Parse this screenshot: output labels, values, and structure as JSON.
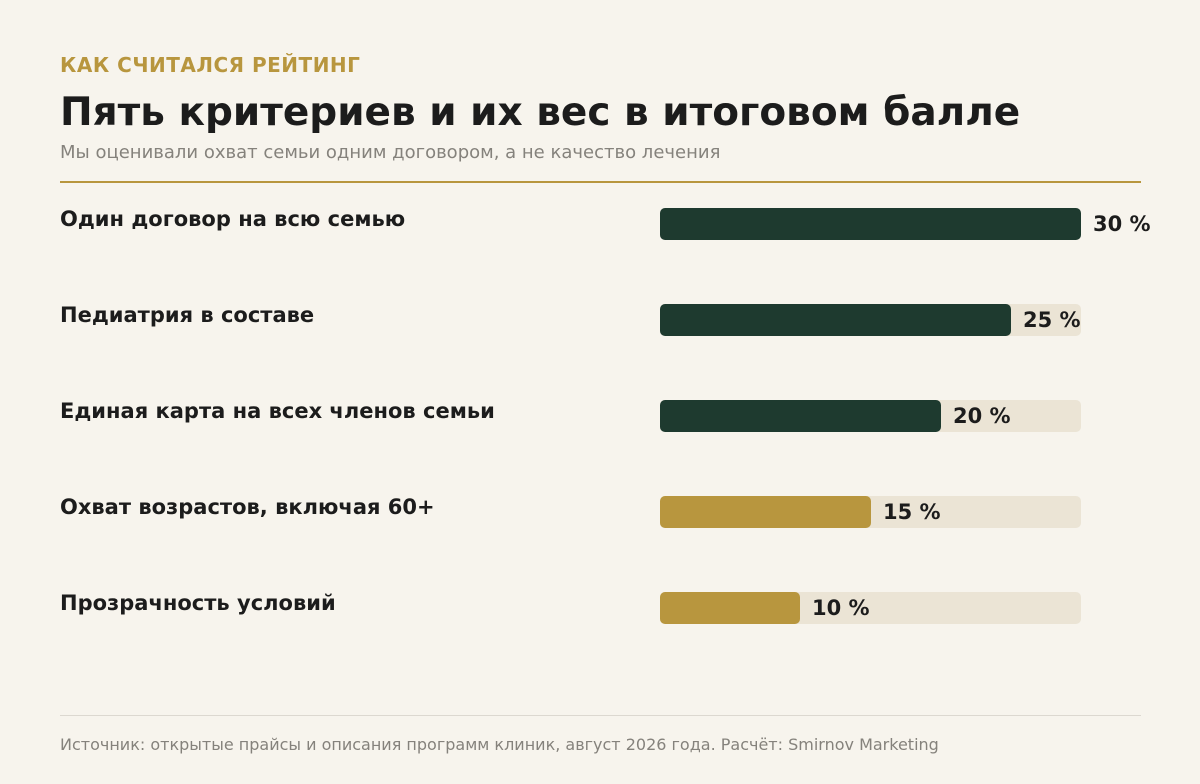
{
  "header": {
    "eyebrow": "КАК СЧИТАЛСЯ РЕЙТИНГ",
    "title": "Пять критериев и их вес в итоговом балле",
    "subtitle": "Мы оценивали охват семьи одним договором, а не качество лечения"
  },
  "colors": {
    "accent_gold": "#b8963e",
    "bar_dark": "#1e3a2f",
    "track": "#ebe4d5",
    "rule_light": "#dcd8d0"
  },
  "chart_data": {
    "type": "bar",
    "orientation": "horizontal",
    "unit": "%",
    "xlim": [
      0,
      30
    ],
    "categories": [
      "Один договор на всю семью",
      "Педиатрия в составе",
      "Единая карта на всех членов семьи",
      "Охват возрастов, включая 60+",
      "Прозрачность условий"
    ],
    "values": [
      30,
      25,
      20,
      15,
      10
    ],
    "value_labels": [
      "30 %",
      "25 %",
      "20 %",
      "15 %",
      "10 %"
    ],
    "bar_colors": [
      "#1e3a2f",
      "#1e3a2f",
      "#1e3a2f",
      "#b8963e",
      "#b8963e"
    ]
  },
  "footer": {
    "source": "Источник: открытые прайсы и описания программ клиник, август 2026 года. Расчёт: Smirnov Marketing"
  }
}
